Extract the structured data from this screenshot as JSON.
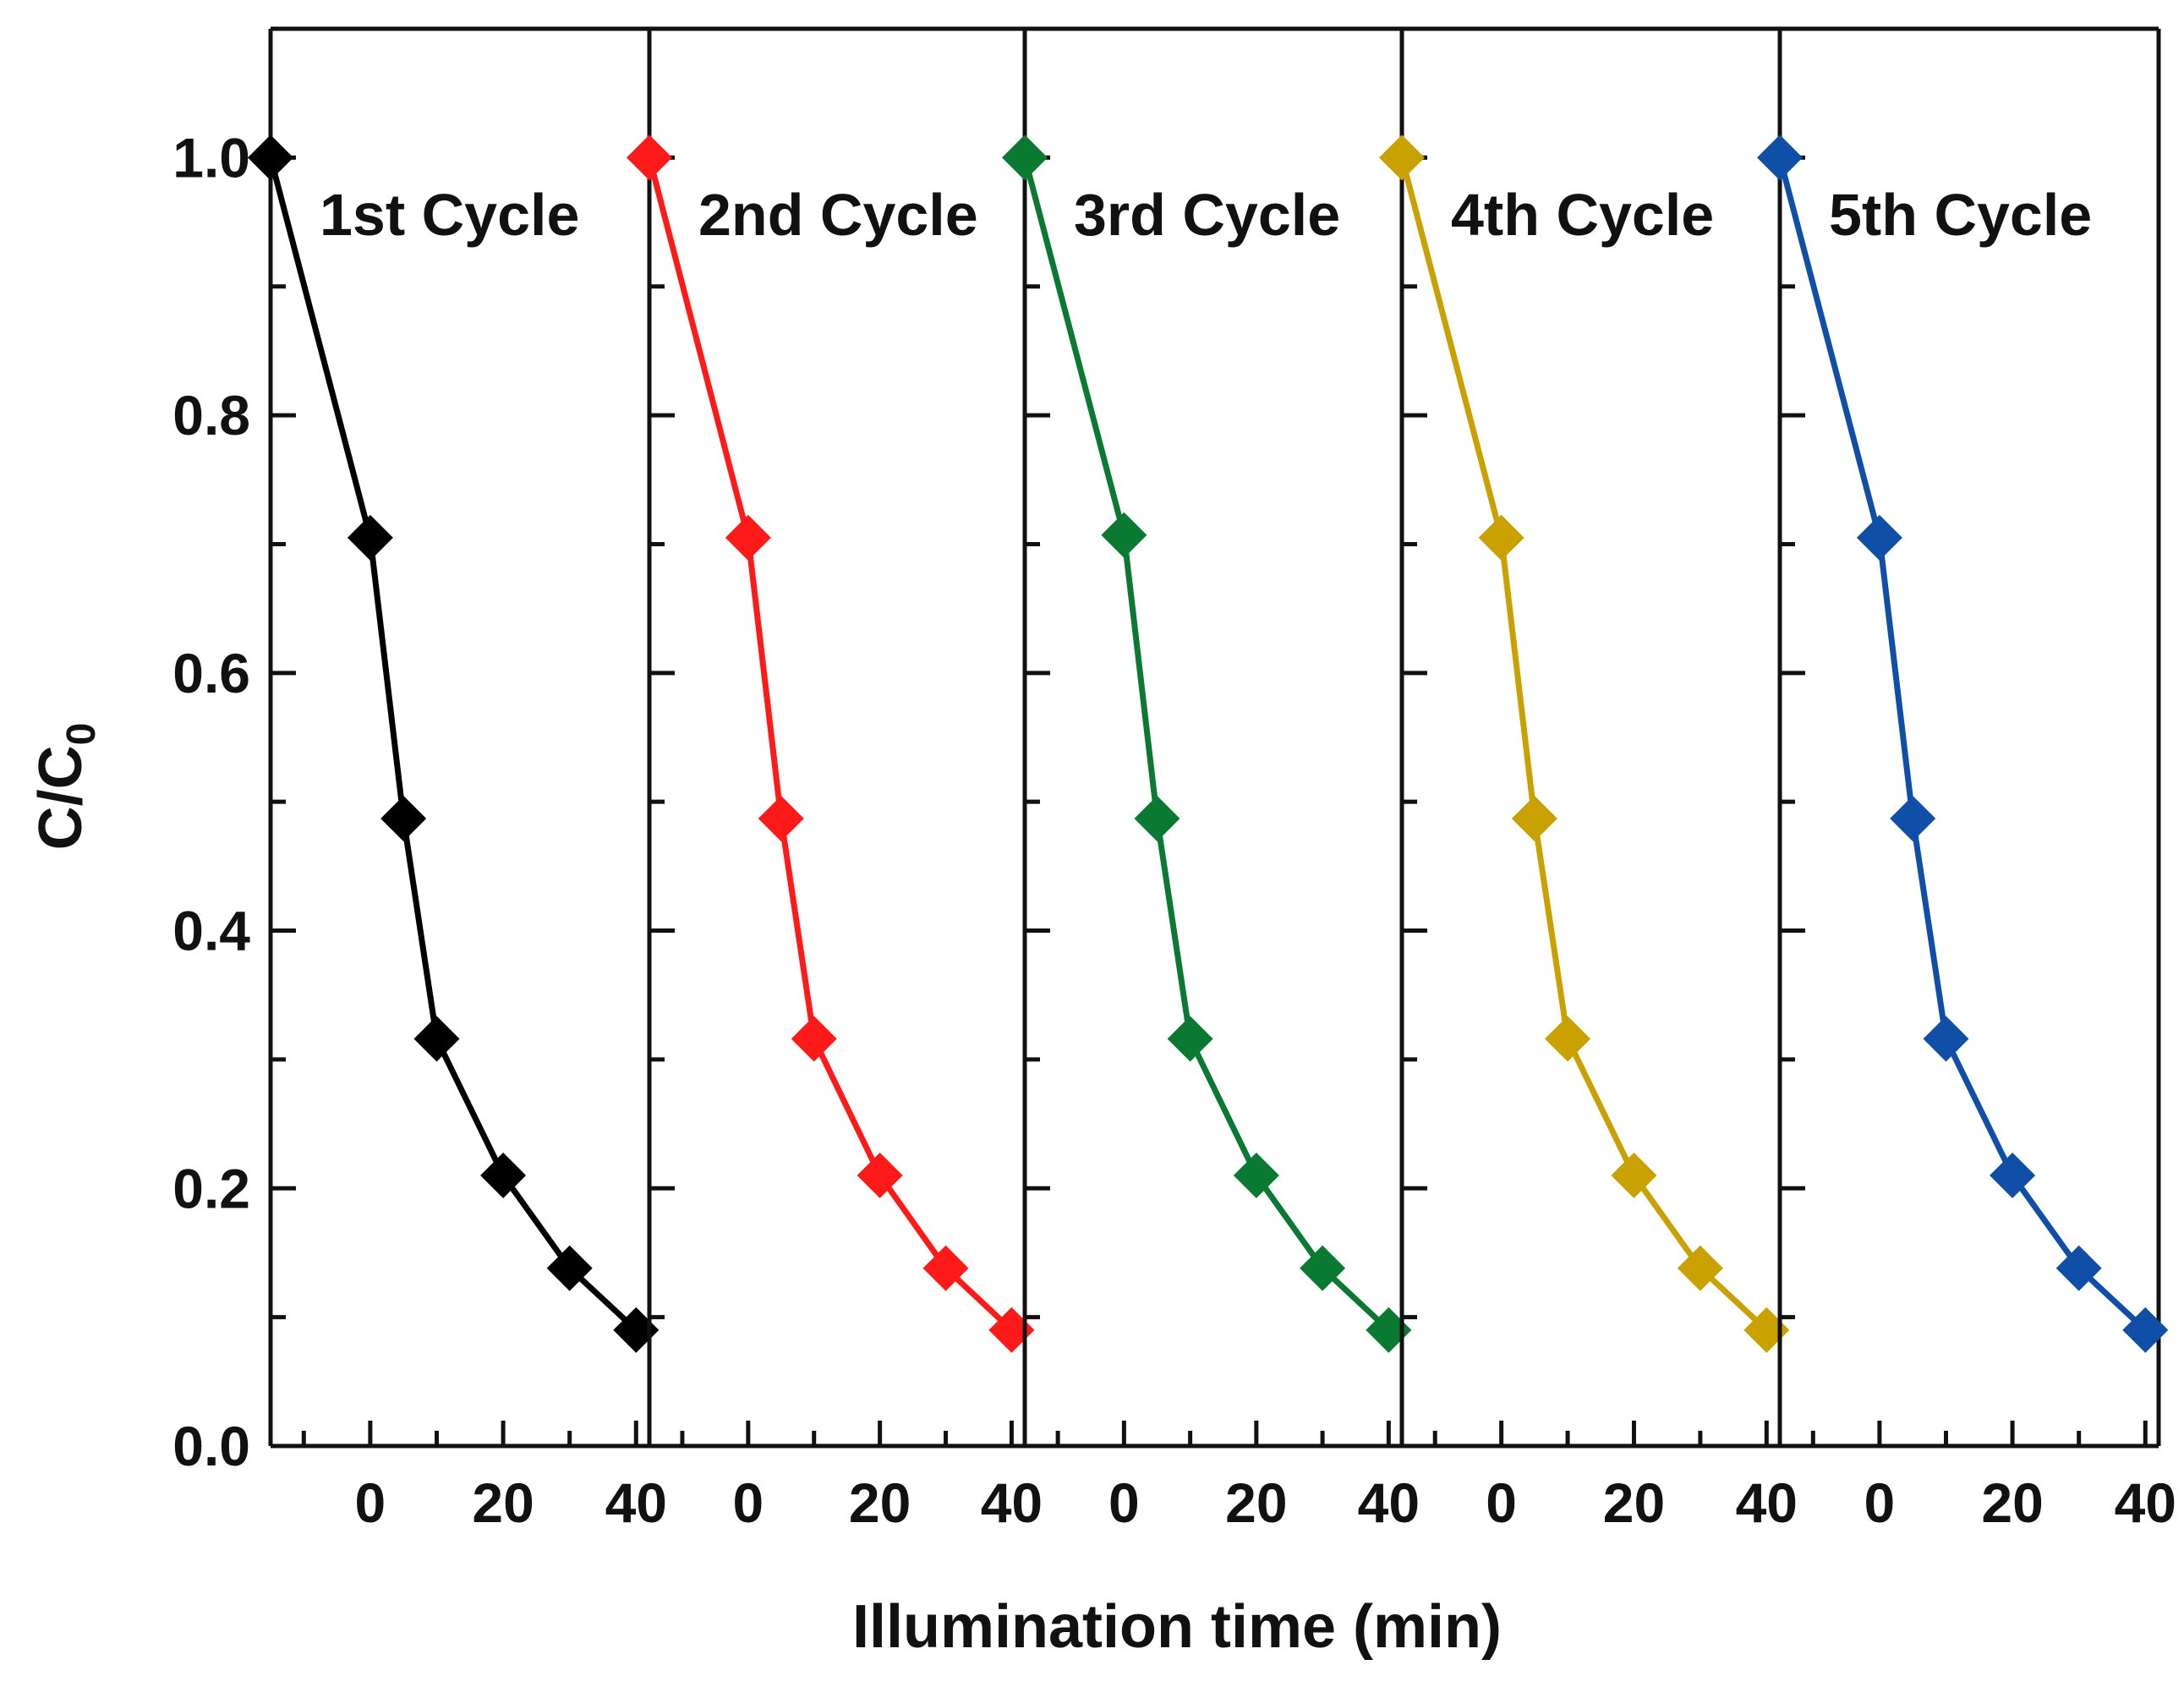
{
  "chart_data": {
    "type": "line",
    "title": "",
    "xlabel": "Illumination time (min)",
    "ylabel": "C/C",
    "ylabel_subscript": "0",
    "ylim": [
      0.0,
      1.1
    ],
    "yticks": [
      0.0,
      0.2,
      0.4,
      0.6,
      0.8,
      1.0
    ],
    "ytick_labels": [
      "0.0",
      "0.2",
      "0.4",
      "0.6",
      "0.8",
      "1.0"
    ],
    "xlim": [
      -15,
      42
    ],
    "xticks": [
      0,
      20,
      40
    ],
    "xtick_labels": [
      "0",
      "20",
      "40"
    ],
    "x": [
      -15,
      0,
      5,
      10,
      20,
      30,
      40
    ],
    "marker": "diamond",
    "series": [
      {
        "name": "1st Cycle",
        "color": "#000000",
        "values": [
          1.0,
          0.705,
          0.487,
          0.316,
          0.21,
          0.138,
          0.09
        ]
      },
      {
        "name": "2nd Cycle",
        "color": "#ff1a1a",
        "values": [
          1.0,
          0.705,
          0.487,
          0.316,
          0.21,
          0.138,
          0.09
        ]
      },
      {
        "name": "3rd Cycle",
        "color": "#0a7a32",
        "values": [
          1.0,
          0.707,
          0.487,
          0.316,
          0.21,
          0.138,
          0.09
        ]
      },
      {
        "name": "4th Cycle",
        "color": "#c9a100",
        "values": [
          1.0,
          0.705,
          0.487,
          0.316,
          0.21,
          0.138,
          0.09
        ]
      },
      {
        "name": "5th Cycle",
        "color": "#0f4fa8",
        "values": [
          1.0,
          0.705,
          0.487,
          0.316,
          0.21,
          0.138,
          0.09
        ]
      }
    ]
  }
}
